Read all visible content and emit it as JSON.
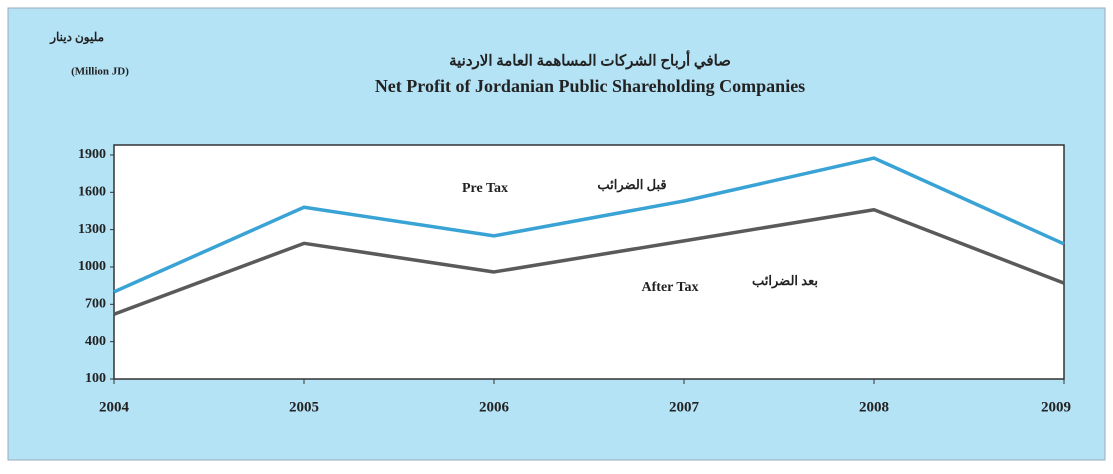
{
  "chart_data": {
    "type": "line",
    "unit_arabic": "مليون دينار",
    "unit": "(Million JD)",
    "title_arabic": "صافي أرباح الشركات المساهمة العامة الاردنية",
    "title": "Net Profit of Jordanian Public Shareholding Companies",
    "x": [
      2004,
      2005,
      2006,
      2007,
      2008,
      2009
    ],
    "xlim": [
      2004,
      2009
    ],
    "xticks": [
      2004,
      2005,
      2006,
      2007,
      2008,
      2009
    ],
    "ylim": [
      100,
      1980
    ],
    "yticks": [
      100,
      400,
      700,
      1000,
      1300,
      1600,
      1900
    ],
    "series": [
      {
        "name": "Pre Tax",
        "name_arabic": "قبل الضرائب",
        "color": "#3aa3d6",
        "values": [
          800,
          1480,
          1250,
          1530,
          1875,
          1185
        ]
      },
      {
        "name": "After Tax",
        "name_arabic": "بعد الضرائب",
        "color": "#5a5a5a",
        "values": [
          620,
          1190,
          960,
          1210,
          1460,
          870
        ]
      }
    ]
  }
}
